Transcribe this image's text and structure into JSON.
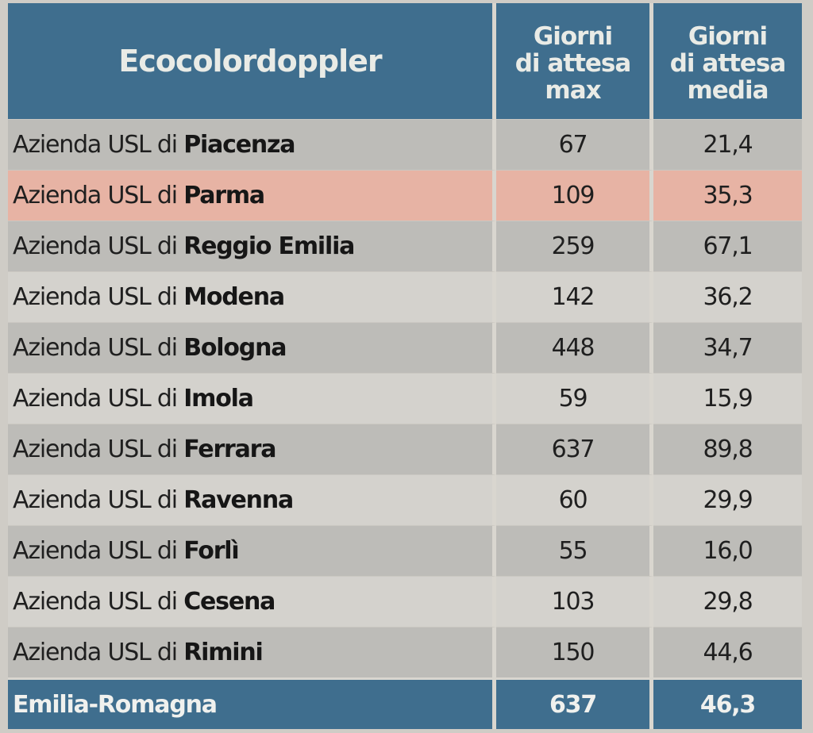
{
  "header": {
    "title": "Ecocolordoppler",
    "col_max": [
      "Giorni",
      "di attesa",
      "max"
    ],
    "col_media": [
      "Giorni",
      "di attesa",
      "media"
    ]
  },
  "rows": [
    {
      "prefix": "Azienda USL di ",
      "city": "Piacenza",
      "max": "67",
      "media": "21,4",
      "highlight": false
    },
    {
      "prefix": "Azienda USL di ",
      "city": "Parma",
      "max": "109",
      "media": "35,3",
      "highlight": true
    },
    {
      "prefix": "Azienda USL di ",
      "city": "Reggio Emilia",
      "max": "259",
      "media": "67,1",
      "highlight": false
    },
    {
      "prefix": "Azienda USL di ",
      "city": "Modena",
      "max": "142",
      "media": "36,2",
      "highlight": false
    },
    {
      "prefix": "Azienda USL di ",
      "city": "Bologna",
      "max": "448",
      "media": "34,7",
      "highlight": false
    },
    {
      "prefix": "Azienda USL di ",
      "city": "Imola",
      "max": "59",
      "media": "15,9",
      "highlight": false
    },
    {
      "prefix": "Azienda USL di ",
      "city": "Ferrara",
      "max": "637",
      "media": "89,8",
      "highlight": false
    },
    {
      "prefix": "Azienda USL di ",
      "city": "Ravenna",
      "max": "60",
      "media": "29,9",
      "highlight": false
    },
    {
      "prefix": "Azienda USL di ",
      "city": "Forlì",
      "max": "55",
      "media": "16,0",
      "highlight": false
    },
    {
      "prefix": "Azienda USL di ",
      "city": "Cesena",
      "max": "103",
      "media": "29,8",
      "highlight": false
    },
    {
      "prefix": "Azienda USL di ",
      "city": "Rimini",
      "max": "150",
      "media": "44,6",
      "highlight": false
    }
  ],
  "total": {
    "label": "Emilia-Romagna",
    "max": "637",
    "media": "46,3"
  },
  "colors": {
    "header": "#3f6e8e",
    "highlight": "#e7b3a4"
  }
}
